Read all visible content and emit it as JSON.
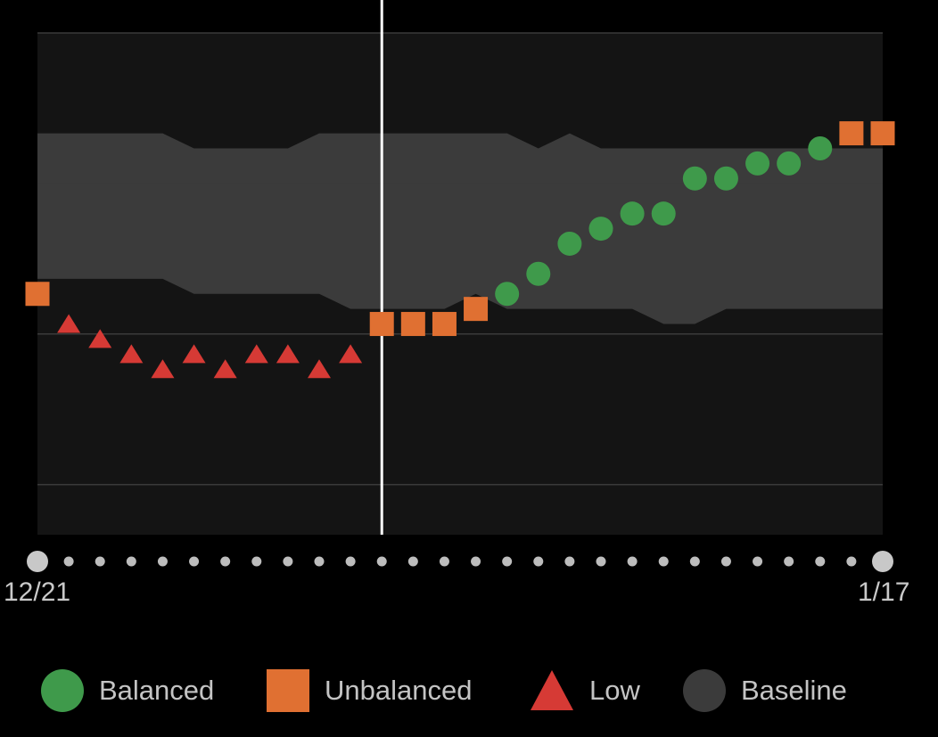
{
  "chart_data": {
    "type": "scatter",
    "x_labels": [
      "12/21",
      "1/17"
    ],
    "days": 28,
    "y_range": [
      0,
      100
    ],
    "selected_day_index": 11,
    "points": [
      {
        "status": "Unbalanced",
        "value": 48
      },
      {
        "status": "Low",
        "value": 42
      },
      {
        "status": "Low",
        "value": 39
      },
      {
        "status": "Low",
        "value": 36
      },
      {
        "status": "Low",
        "value": 33
      },
      {
        "status": "Low",
        "value": 36
      },
      {
        "status": "Low",
        "value": 33
      },
      {
        "status": "Low",
        "value": 36
      },
      {
        "status": "Low",
        "value": 36
      },
      {
        "status": "Low",
        "value": 33
      },
      {
        "status": "Low",
        "value": 36
      },
      {
        "status": "Unbalanced",
        "value": 42
      },
      {
        "status": "Unbalanced",
        "value": 42
      },
      {
        "status": "Unbalanced",
        "value": 42
      },
      {
        "status": "Unbalanced",
        "value": 45
      },
      {
        "status": "Balanced",
        "value": 48
      },
      {
        "status": "Balanced",
        "value": 52
      },
      {
        "status": "Balanced",
        "value": 58
      },
      {
        "status": "Balanced",
        "value": 61
      },
      {
        "status": "Balanced",
        "value": 64
      },
      {
        "status": "Balanced",
        "value": 64
      },
      {
        "status": "Balanced",
        "value": 71
      },
      {
        "status": "Balanced",
        "value": 71
      },
      {
        "status": "Balanced",
        "value": 74
      },
      {
        "status": "Balanced",
        "value": 74
      },
      {
        "status": "Balanced",
        "value": 77
      },
      {
        "status": "Unbalanced",
        "value": 80
      },
      {
        "status": "Unbalanced",
        "value": 80
      }
    ],
    "baseline_upper": [
      80,
      80,
      80,
      80,
      80,
      77,
      77,
      77,
      77,
      80,
      80,
      80,
      80,
      80,
      80,
      80,
      77,
      80,
      77,
      77,
      77,
      77,
      77,
      77,
      77,
      77,
      77,
      77
    ],
    "baseline_lower": [
      51,
      51,
      51,
      51,
      51,
      48,
      48,
      48,
      48,
      48,
      45,
      45,
      45,
      45,
      48,
      45,
      45,
      45,
      45,
      45,
      42,
      42,
      45,
      45,
      45,
      45,
      45,
      45
    ],
    "legend": [
      {
        "label": "Balanced",
        "marker": "circle",
        "color": "#3f9a4b"
      },
      {
        "label": "Unbalanced",
        "marker": "square",
        "color": "#e07032"
      },
      {
        "label": "Low",
        "marker": "triangle",
        "color": "#d63a35"
      },
      {
        "label": "Baseline",
        "marker": "circle",
        "color": "#3b3b3b"
      }
    ]
  }
}
